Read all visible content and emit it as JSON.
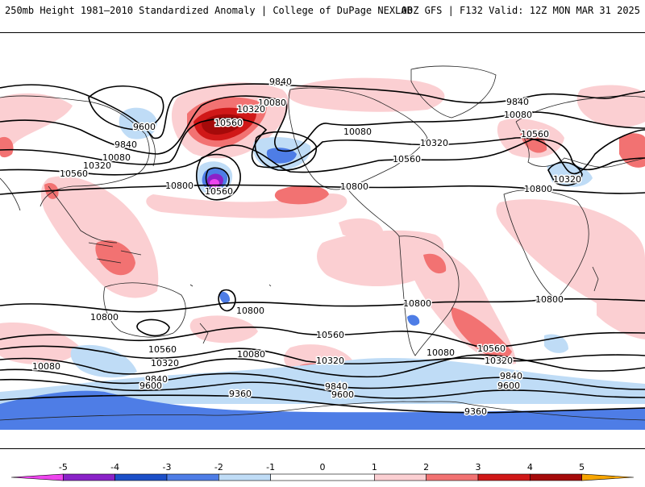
{
  "header": {
    "left_title": "250mb Height 1981–2010 Standardized Anomaly | College of DuPage NEXLAB",
    "right_title": "00Z GFS | F132 Valid: 12Z MON MAR 31 2025"
  },
  "colors": {
    "anom_neg5": "#ee44ee",
    "anom_neg4": "#8a22c8",
    "anom_neg3": "#1c4fc8",
    "anom_neg2": "#4e7de6",
    "anom_neg1": "#bfdcf6",
    "anom_pos1": "#fbcfd2",
    "anom_pos2": "#f27272",
    "anom_pos3": "#d01818",
    "anom_pos4": "#a50a0a",
    "anom_pos5": "#f7a500",
    "contour": "#000000",
    "coast": "#222222"
  },
  "contour_labels": [
    {
      "id": "c9840-np",
      "text": "9840"
    },
    {
      "id": "c9600-asia",
      "text": "9600"
    },
    {
      "id": "c9840-asia",
      "text": "9840"
    },
    {
      "id": "c10080-asia",
      "text": "10080"
    },
    {
      "id": "c10320-asia",
      "text": "10320"
    },
    {
      "id": "c10560-asia",
      "text": "10560"
    },
    {
      "id": "c10080-np",
      "text": "10080"
    },
    {
      "id": "c10320-np",
      "text": "10320"
    },
    {
      "id": "c10560-np",
      "text": "10560"
    },
    {
      "id": "c10800-cp",
      "text": "10800"
    },
    {
      "id": "c10560-hi",
      "text": "10560"
    },
    {
      "id": "c10080-na",
      "text": "10080"
    },
    {
      "id": "c10320-na",
      "text": "10320"
    },
    {
      "id": "c10560-na",
      "text": "10560"
    },
    {
      "id": "c10800-gulf",
      "text": "10800"
    },
    {
      "id": "c9840-atl",
      "text": "9840"
    },
    {
      "id": "c10080-atl",
      "text": "10080"
    },
    {
      "id": "c10560-eu",
      "text": "10560"
    },
    {
      "id": "c10320-med",
      "text": "10320"
    },
    {
      "id": "c10800-af",
      "text": "10800"
    },
    {
      "id": "c10800-aus",
      "text": "10800"
    },
    {
      "id": "c10800-sp",
      "text": "10800"
    },
    {
      "id": "c10800-sam",
      "text": "10800"
    },
    {
      "id": "c10800-si",
      "text": "10800"
    },
    {
      "id": "c10560-sp",
      "text": "10560"
    },
    {
      "id": "c10560-nz",
      "text": "10560"
    },
    {
      "id": "c10320-nz",
      "text": "10320"
    },
    {
      "id": "c10080-so",
      "text": "10080"
    },
    {
      "id": "c10080-w",
      "text": "10080"
    },
    {
      "id": "c9840-nz",
      "text": "9840"
    },
    {
      "id": "c9600-nz",
      "text": "9600"
    },
    {
      "id": "c10320-sa",
      "text": "10320"
    },
    {
      "id": "c10080-sa",
      "text": "10080"
    },
    {
      "id": "c9840-sa",
      "text": "9840"
    },
    {
      "id": "c9600-sa",
      "text": "9600"
    },
    {
      "id": "c10560-satl",
      "text": "10560"
    },
    {
      "id": "c10320-satl",
      "text": "10320"
    },
    {
      "id": "c9840-satl",
      "text": "9840"
    },
    {
      "id": "c9600-satl",
      "text": "9600"
    },
    {
      "id": "c9360-ant",
      "text": "9360"
    },
    {
      "id": "c9360-ant2",
      "text": "9360"
    }
  ],
  "colorbar": {
    "ticks": [
      "-5",
      "-4",
      "-3",
      "-2",
      "-1",
      "0",
      "1",
      "2",
      "3",
      "4",
      "5"
    ],
    "segments": [
      {
        "from": -6,
        "to": -5,
        "color_key": "anom_neg5"
      },
      {
        "from": -5,
        "to": -4,
        "color_key": "anom_neg4"
      },
      {
        "from": -4,
        "to": -3,
        "color_key": "anom_neg3"
      },
      {
        "from": -3,
        "to": -2,
        "color_key": "anom_neg2"
      },
      {
        "from": -2,
        "to": -1,
        "color_key": "anom_neg1"
      },
      {
        "from": -1,
        "to": 1,
        "color_key": "white"
      },
      {
        "from": 1,
        "to": 2,
        "color_key": "anom_pos1"
      },
      {
        "from": 2,
        "to": 3,
        "color_key": "anom_pos2"
      },
      {
        "from": 3,
        "to": 4,
        "color_key": "anom_pos3"
      },
      {
        "from": 4,
        "to": 5,
        "color_key": "anom_pos4"
      },
      {
        "from": 5,
        "to": 6,
        "color_key": "anom_pos5"
      }
    ]
  }
}
